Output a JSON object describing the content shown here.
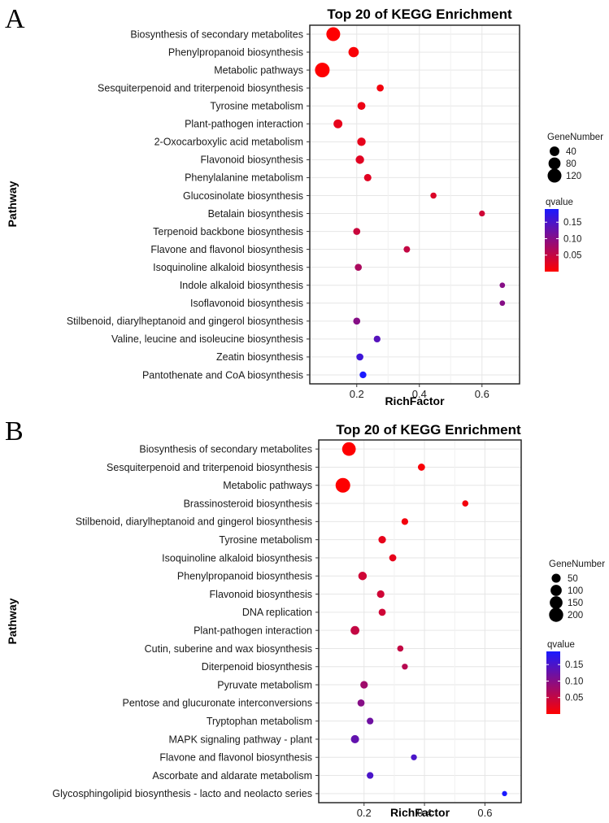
{
  "chart_data": [
    {
      "type": "scatter",
      "panel_label": "A",
      "title": "Top 20 of KEGG Enrichment",
      "xlabel": "RichFactor",
      "ylabel": "Pathway",
      "xlim": [
        0.05,
        0.72
      ],
      "xticks": [
        0.2,
        0.4,
        0.6
      ],
      "xtick_labels": [
        "0.2",
        "0.4",
        "0.6"
      ],
      "grid": true,
      "legend_position": "right",
      "size_legend": {
        "title": "GeneNumber",
        "values": [
          40,
          80,
          120
        ],
        "labels": [
          "40",
          "80",
          "120"
        ]
      },
      "color_legend": {
        "title": "qvalue",
        "range": [
          0.0,
          0.19
        ],
        "ticks": [
          0.05,
          0.1,
          0.15
        ],
        "tick_labels": [
          "0.05",
          "0.10",
          "0.15"
        ],
        "low_color": "#ff0000",
        "high_color": "#1a1aff"
      },
      "pathways": [
        "Biosynthesis of secondary metabolites",
        "Phenylpropanoid biosynthesis",
        "Metabolic pathways",
        "Sesquiterpenoid and triterpenoid biosynthesis",
        "Tyrosine metabolism",
        "Plant-pathogen interaction",
        "2-Oxocarboxylic acid metabolism",
        "Flavonoid biosynthesis",
        "Phenylalanine metabolism",
        "Glucosinolate biosynthesis",
        "Betalain biosynthesis",
        "Terpenoid backbone biosynthesis",
        "Flavone and flavonol biosynthesis",
        "Isoquinoline alkaloid biosynthesis",
        "Indole alkaloid biosynthesis",
        "Isoflavonoid biosynthesis",
        "Stilbenoid, diarylheptanoid and gingerol biosynthesis",
        "Valine, leucine and isoleucine biosynthesis",
        "Zeatin biosynthesis",
        "Pantothenate and CoA biosynthesis"
      ],
      "rich_factor": [
        0.125,
        0.19,
        0.09,
        0.275,
        0.215,
        0.14,
        0.215,
        0.21,
        0.235,
        0.445,
        0.6,
        0.2,
        0.36,
        0.205,
        0.665,
        0.665,
        0.2,
        0.265,
        0.21,
        0.22
      ],
      "gene_number": [
        120,
        50,
        140,
        12,
        20,
        30,
        25,
        25,
        15,
        6,
        5,
        12,
        8,
        12,
        3,
        3,
        12,
        10,
        12,
        10
      ],
      "qvalue": [
        0.001,
        0.005,
        0.001,
        0.01,
        0.015,
        0.02,
        0.02,
        0.025,
        0.025,
        0.03,
        0.04,
        0.045,
        0.05,
        0.07,
        0.1,
        0.1,
        0.1,
        0.14,
        0.16,
        0.19
      ]
    },
    {
      "type": "scatter",
      "panel_label": "B",
      "title": "Top 20 of KEGG Enrichment",
      "xlabel": "RichFactor",
      "ylabel": "Pathway",
      "xlim": [
        0.05,
        0.72
      ],
      "xticks": [
        0.2,
        0.4,
        0.6
      ],
      "xtick_labels": [
        "0.2",
        "0.4",
        "0.6"
      ],
      "grid": true,
      "legend_position": "right",
      "size_legend": {
        "title": "GeneNumber",
        "values": [
          50,
          100,
          150,
          200
        ],
        "labels": [
          "50",
          "100",
          "150",
          "200"
        ]
      },
      "color_legend": {
        "title": "qvalue",
        "range": [
          0.0,
          0.19
        ],
        "ticks": [
          0.05,
          0.1,
          0.15
        ],
        "tick_labels": [
          "0.05",
          "0.10",
          "0.15"
        ],
        "low_color": "#ff0000",
        "high_color": "#1a1aff"
      },
      "pathways": [
        "Biosynthesis of secondary metabolites",
        "Sesquiterpenoid and triterpenoid biosynthesis",
        "Metabolic pathways",
        "Brassinosteroid biosynthesis",
        "Stilbenoid, diarylheptanoid and gingerol biosynthesis",
        "Tyrosine metabolism",
        "Isoquinoline alkaloid biosynthesis",
        "Phenylpropanoid biosynthesis",
        "Flavonoid biosynthesis",
        "DNA replication",
        "Plant-pathogen interaction",
        "Cutin, suberine and wax biosynthesis",
        "Diterpenoid biosynthesis",
        "Pyruvate metabolism",
        "Pentose and glucuronate interconversions",
        "Tryptophan metabolism",
        "MAPK signaling pathway - plant",
        "Flavone and flavonol biosynthesis",
        "Ascorbate and aldarate metabolism",
        "Glycosphingolipid biosynthesis - lacto and neolacto series"
      ],
      "rich_factor": [
        0.15,
        0.39,
        0.13,
        0.535,
        0.335,
        0.26,
        0.295,
        0.195,
        0.255,
        0.26,
        0.17,
        0.32,
        0.335,
        0.2,
        0.19,
        0.22,
        0.17,
        0.365,
        0.22,
        0.665
      ],
      "gene_number": [
        180,
        20,
        220,
        10,
        15,
        25,
        20,
        40,
        25,
        20,
        45,
        10,
        8,
        25,
        20,
        15,
        35,
        8,
        15,
        3
      ],
      "qvalue": [
        0.001,
        0.005,
        0.001,
        0.01,
        0.01,
        0.02,
        0.02,
        0.04,
        0.04,
        0.04,
        0.05,
        0.05,
        0.06,
        0.08,
        0.1,
        0.12,
        0.13,
        0.15,
        0.15,
        0.19
      ]
    }
  ]
}
